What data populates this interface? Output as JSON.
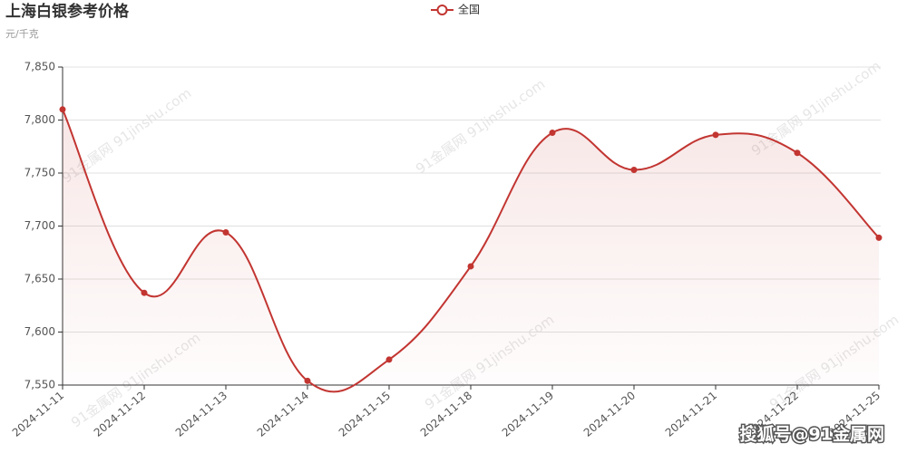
{
  "chart_data": {
    "type": "line",
    "title": "上海白银参考价格",
    "subtitle": "元/千克",
    "watermark": "91金属网 91jinshu.com",
    "credit": "搜狐号@91金属网",
    "categories": [
      "2024-11-11",
      "2024-11-12",
      "2024-11-13",
      "2024-11-14",
      "2024-11-15",
      "2024-11-18",
      "2024-11-19",
      "2024-11-20",
      "2024-11-21",
      "2024-11-22",
      "2024-11-25"
    ],
    "series": [
      {
        "name": "全国",
        "color": "#c23531",
        "values": [
          7810,
          7637,
          7694,
          7554,
          7574,
          7662,
          7788,
          7753,
          7786,
          7769,
          7689
        ]
      }
    ],
    "ylim": [
      7550,
      7850
    ],
    "yticks": [
      {
        "value": 7550,
        "label": "7,550"
      },
      {
        "value": 7600,
        "label": "7,600"
      },
      {
        "value": 7650,
        "label": "7,650"
      },
      {
        "value": 7700,
        "label": "7,700"
      },
      {
        "value": 7750,
        "label": "7,750"
      },
      {
        "value": 7800,
        "label": "7,800"
      },
      {
        "value": 7850,
        "label": "7,850"
      }
    ],
    "grid": true,
    "legend": "top"
  }
}
